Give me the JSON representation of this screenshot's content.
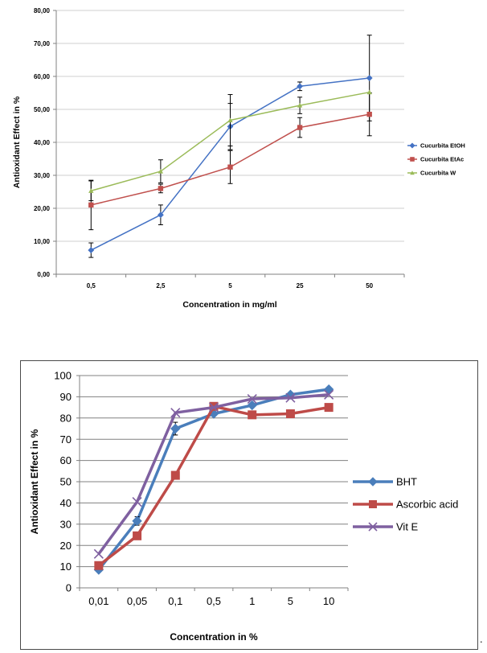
{
  "chart_data": [
    {
      "type": "line",
      "title": "",
      "xlabel": "Concentration in mg/ml",
      "ylabel": "Antioxidant Effect in %",
      "categories": [
        "0,5",
        "2,5",
        "5",
        "25",
        "50"
      ],
      "ylim": [
        0,
        80
      ],
      "y_ticks": [
        "0,00",
        "10,00",
        "20,00",
        "30,00",
        "40,00",
        "50,00",
        "60,00",
        "70,00",
        "80,00"
      ],
      "grid": true,
      "legend_position": "right",
      "series": [
        {
          "name": "Cucurbita EtOH",
          "color": "#4472C4",
          "marker": "diamond",
          "values": [
            7.3,
            18.0,
            44.8,
            57.0,
            59.5
          ],
          "errors": [
            2.2,
            3.0,
            7.0,
            1.3,
            13.0
          ]
        },
        {
          "name": "Cucurbita EtAc",
          "color": "#C0504D",
          "marker": "square",
          "values": [
            21.0,
            26.0,
            32.5,
            44.5,
            48.5
          ],
          "errors": [
            7.5,
            1.3,
            5.0,
            3.0,
            6.5
          ]
        },
        {
          "name": "Cucurbita W",
          "color": "#9BBB59",
          "marker": "triangle",
          "values": [
            25.3,
            31.2,
            46.7,
            51.2,
            55.2
          ],
          "errors": [
            3.0,
            3.5,
            7.8,
            2.5,
            0
          ]
        }
      ]
    },
    {
      "type": "line",
      "title": "",
      "xlabel": "Concentration in %",
      "ylabel": "Antioxidant Effect in %",
      "categories": [
        "0,01",
        "0,05",
        "0,1",
        "0,5",
        "1",
        "5",
        "10"
      ],
      "ylim": [
        0,
        100
      ],
      "y_ticks": [
        "0",
        "10",
        "20",
        "30",
        "40",
        "50",
        "60",
        "70",
        "80",
        "90",
        "100"
      ],
      "grid": true,
      "legend_position": "right",
      "series": [
        {
          "name": "BHT",
          "color": "#4A7EBB",
          "marker": "diamond",
          "values": [
            8.5,
            31.5,
            75.0,
            82.0,
            86.0,
            91.0,
            93.5
          ],
          "errors": [
            0,
            2.0,
            3.0,
            0,
            0,
            0,
            0
          ]
        },
        {
          "name": "Ascorbic acid",
          "color": "#BE4B48",
          "marker": "square",
          "values": [
            10.5,
            24.5,
            53.0,
            85.5,
            81.5,
            82.0,
            85.0
          ],
          "errors": [
            0,
            0,
            0,
            0,
            0,
            0,
            0
          ]
        },
        {
          "name": "Vit E",
          "color": "#7F60A0",
          "marker": "x",
          "values": [
            16.0,
            40.5,
            82.5,
            85.0,
            89.0,
            89.5,
            91.0
          ],
          "errors": [
            0,
            0,
            0,
            0,
            0,
            0,
            0
          ]
        }
      ]
    }
  ],
  "trailing_text": "."
}
